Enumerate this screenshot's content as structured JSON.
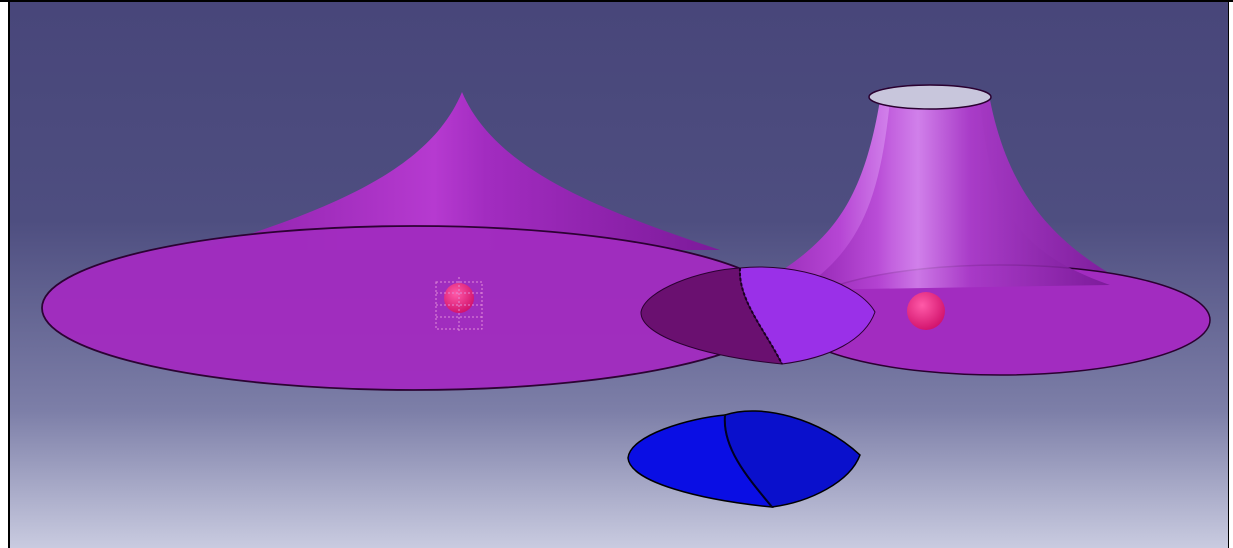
{
  "viewport": {
    "background_top": "#48467a",
    "background_bottom": "#c9cbe0"
  },
  "colors": {
    "surface": "#a22cc0",
    "surface_highlight": "#c86ee0",
    "intersection_dark": "#6a1070",
    "intersection_light": "#9a30e8",
    "projected_region": "#0d10e8",
    "point_marker": "#e81a7a",
    "outline": "#2a0030"
  },
  "objects": [
    {
      "name": "left-peaked-surface"
    },
    {
      "name": "right-truncated-cone-surface"
    },
    {
      "name": "intersection-region"
    },
    {
      "name": "projected-blue-region"
    },
    {
      "name": "left-point-marker",
      "selected": true
    },
    {
      "name": "right-point-marker",
      "selected": false
    }
  ]
}
